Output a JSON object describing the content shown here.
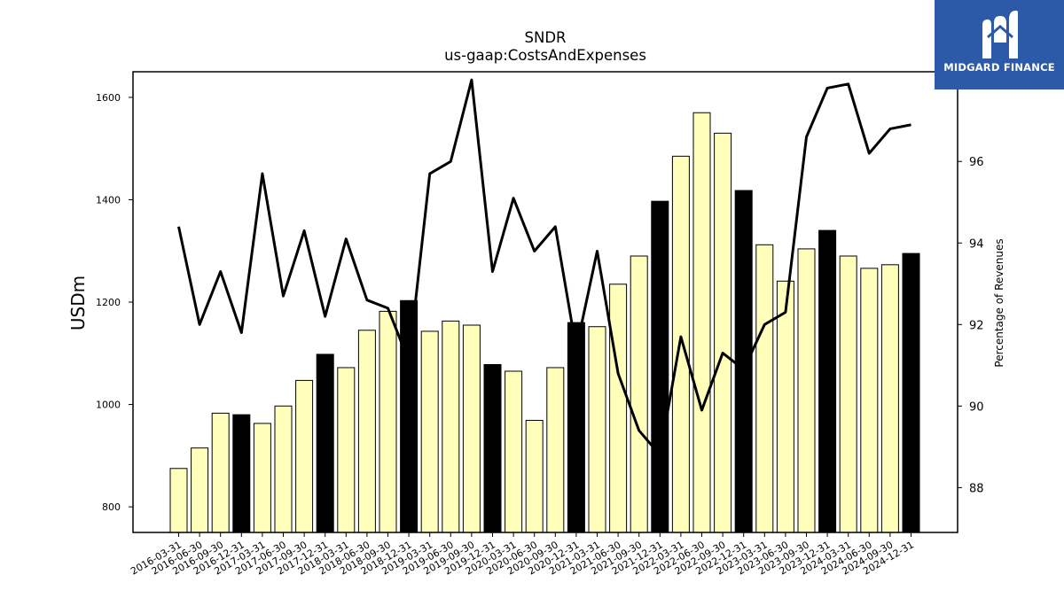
{
  "chart_data": {
    "type": "bar",
    "title": "SNDR",
    "subtitle": "us-gaap:CostsAndExpenses",
    "ylabel": "USDm",
    "y2label": "Percentage of Revenues",
    "ylim": [
      750,
      1650
    ],
    "y2lim": [
      86.9,
      98.2
    ],
    "yticks": [
      800,
      1000,
      1200,
      1400,
      1600
    ],
    "y2ticks": [
      88,
      90,
      92,
      94,
      96
    ],
    "categories": [
      "2016-03-31",
      "2016-06-30",
      "2016-09-30",
      "2016-12-31",
      "2017-03-31",
      "2017-06-30",
      "2017-09-30",
      "2017-12-31",
      "2018-03-31",
      "2018-06-30",
      "2018-09-30",
      "2018-12-31",
      "2019-03-31",
      "2019-06-30",
      "2019-09-30",
      "2019-12-31",
      "2020-03-31",
      "2020-06-30",
      "2020-09-30",
      "2020-12-31",
      "2021-03-31",
      "2021-06-30",
      "2021-09-30",
      "2021-12-31",
      "2022-03-31",
      "2022-06-30",
      "2022-09-30",
      "2022-12-31",
      "2023-03-31",
      "2023-06-30",
      "2023-09-30",
      "2023-12-31",
      "2024-03-31",
      "2024-06-30",
      "2024-09-30",
      "2024-12-31"
    ],
    "series": [
      {
        "type": "bar",
        "values": [
          875,
          915,
          983,
          980,
          963,
          997,
          1047,
          1098,
          1072,
          1145,
          1182,
          1203,
          1143,
          1163,
          1155,
          1078,
          1065,
          969,
          1072,
          1160,
          1152,
          1235,
          1290,
          1397,
          1485,
          1570,
          1530,
          1418,
          1312,
          1241,
          1304,
          1340,
          1290,
          1266,
          1273,
          1295
        ]
      },
      {
        "type": "line",
        "axis": "right",
        "values": [
          94.4,
          92.0,
          93.3,
          91.8,
          95.7,
          92.7,
          94.3,
          92.2,
          94.1,
          92.6,
          92.4,
          91.1,
          95.7,
          96.0,
          98.0,
          93.3,
          95.1,
          93.8,
          94.4,
          91.4,
          93.8,
          90.8,
          89.4,
          88.8,
          91.7,
          89.9,
          91.3,
          90.9,
          92.0,
          92.3,
          96.6,
          97.8,
          97.9,
          96.2,
          96.8,
          96.9
        ]
      }
    ],
    "bar_colors": {
      "quarter": "#ffffbb",
      "year_end": "#000000"
    },
    "line_color": "#000000",
    "grid": false,
    "legend": "none"
  },
  "logo": {
    "text": "MIDGARD FINANCE",
    "background": "#2d5aa8"
  }
}
